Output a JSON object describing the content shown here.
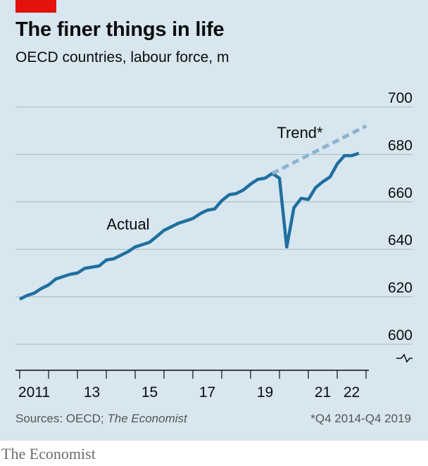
{
  "header": {
    "title": "The finer things in life",
    "subtitle": "OECD countries, labour force, m"
  },
  "footer": {
    "sources_prefix": "Sources: OECD; ",
    "sources_italic": "The Economist",
    "footnote": "*Q4 2014-Q4 2019",
    "brand": "The Economist"
  },
  "colors": {
    "background": "#d7e6ef",
    "actual": "#1f6f9f",
    "trend": "#8cb3cf",
    "grid": "#a9b9c3",
    "accent": "#e3120b"
  },
  "chart_data": {
    "type": "line",
    "x_start": 2011.0,
    "x_end": 2023.0,
    "ylim": [
      600,
      700
    ],
    "y_ticks": [
      600,
      620,
      640,
      660,
      680,
      700
    ],
    "x_ticks": [
      {
        "value": 2011,
        "label": "2011"
      },
      {
        "value": 2013,
        "label": "13"
      },
      {
        "value": 2015,
        "label": "15"
      },
      {
        "value": 2017,
        "label": "17"
      },
      {
        "value": 2019,
        "label": "19"
      },
      {
        "value": 2021,
        "label": "21"
      },
      {
        "value": 2022,
        "label": "22"
      }
    ],
    "axis_break": true,
    "grid": true,
    "series": [
      {
        "name": "Actual",
        "style": "solid",
        "x": [
          2011.0,
          2011.25,
          2011.5,
          2011.75,
          2012.0,
          2012.25,
          2012.5,
          2012.75,
          2013.0,
          2013.25,
          2013.5,
          2013.75,
          2014.0,
          2014.25,
          2014.5,
          2014.75,
          2015.0,
          2015.25,
          2015.5,
          2015.75,
          2016.0,
          2016.25,
          2016.5,
          2016.75,
          2017.0,
          2017.25,
          2017.5,
          2017.75,
          2018.0,
          2018.25,
          2018.5,
          2018.75,
          2019.0,
          2019.25,
          2019.5,
          2019.75,
          2020.0,
          2020.25,
          2020.5,
          2020.75,
          2021.0,
          2021.25,
          2021.5,
          2021.75,
          2022.0,
          2022.25,
          2022.5,
          2022.75
        ],
        "y": [
          619.0,
          620.5,
          621.5,
          623.5,
          625.0,
          627.5,
          628.5,
          629.5,
          630.0,
          632.0,
          632.5,
          633.0,
          635.5,
          636.0,
          637.5,
          639.0,
          641.0,
          642.0,
          643.0,
          645.5,
          648.0,
          649.5,
          651.0,
          652.0,
          653.0,
          655.0,
          656.5,
          657.0,
          660.5,
          663.0,
          663.5,
          665.0,
          667.5,
          669.5,
          670.0,
          672.0,
          670.0,
          641.0,
          657.5,
          661.5,
          661.0,
          666.0,
          668.5,
          670.5,
          676.0,
          679.5,
          679.5,
          680.5
        ]
      },
      {
        "name": "Trend*",
        "style": "dashed",
        "x": [
          2019.75,
          2023.0
        ],
        "y": [
          672.0,
          692.0
        ]
      }
    ],
    "annotations": [
      {
        "text": "Actual",
        "series": "Actual"
      },
      {
        "text": "Trend*",
        "series": "Trend*"
      }
    ]
  }
}
